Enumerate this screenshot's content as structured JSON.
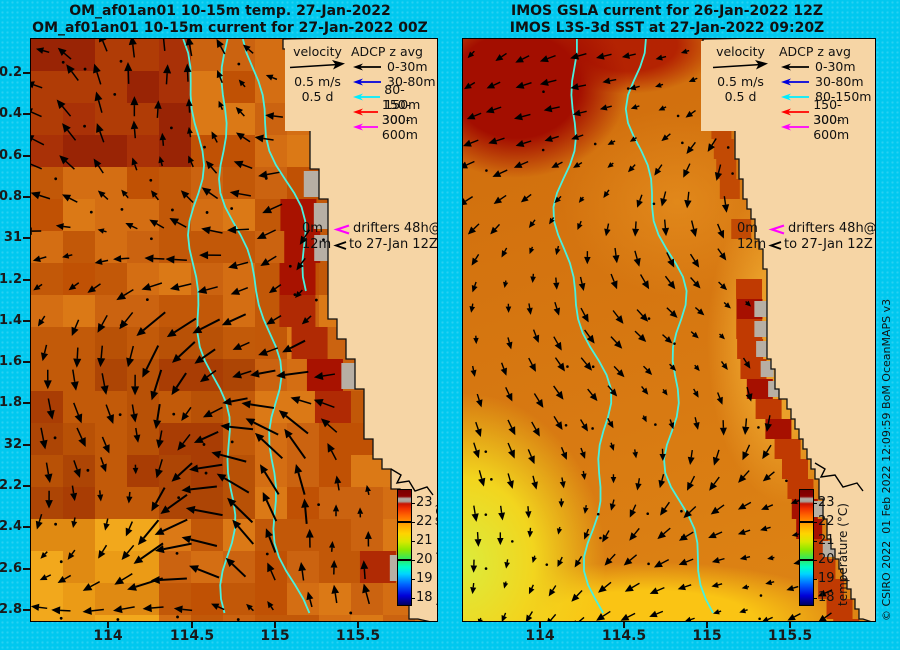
{
  "figure": {
    "background_color": "#00c8ef",
    "land_color": "#f6d5a5",
    "contour_color": "#49f0de",
    "coastal_warm_color": "#a81200",
    "gray_mask_color": "#b7afa4"
  },
  "left_panel": {
    "title_line1": "OM_af01an01 10-15m temp. 27-Jan-2022",
    "title_line2": "OM_af01an01 10-15m current for 27-Jan-2022 00Z",
    "content": "blocky model temperature field with current vector arrows, cyan contours, coastline at right"
  },
  "right_panel": {
    "title_line1": "IMOS GSLA current for 26-Jan-2022 12Z",
    "title_line2": "IMOS L3S-3d SST at 27-Jan-2022 09:20Z",
    "content": "smooth satellite SST field with GSLA current vector arrows, cyan contours, coastline at right"
  },
  "legend": {
    "velocity_label": "velocity",
    "velocity_speed": "0.5 m/s",
    "velocity_duration": "0.5 d",
    "adcp_title": "ADCP z avg",
    "entries": [
      {
        "label": "0-30m",
        "color": "#000000"
      },
      {
        "label": "30-80m",
        "color": "#0000dd"
      },
      {
        "label": "80-150m",
        "color": "#00eeff"
      },
      {
        "label": "150-300m",
        "color": "#ff0000"
      },
      {
        "label": "300-600m",
        "color": "#ff00ff"
      }
    ]
  },
  "drifters": {
    "line1_depth": "0m",
    "line1_text": "drifters 48h@12h",
    "line1_arrow_color": "#ff00ff",
    "line2_depth": "12m",
    "line2_text": "to 27-Jan 12Z",
    "line2_arrow_color": "#000000"
  },
  "colorbar": {
    "label": "temperature (°C)",
    "ticks": [
      "18",
      "19",
      "20",
      "21",
      "22",
      "23"
    ],
    "contour_marks": [
      "20",
      "22"
    ],
    "min_value": 17.7,
    "max_value": 23.75
  },
  "axes": {
    "y_tick_labels": [
      "0.2",
      "0.4",
      "0.6",
      "0.8",
      "31",
      "1.2",
      "1.4",
      "1.6",
      "1.8",
      "32",
      "2.2",
      "2.4",
      "2.6",
      "2.8"
    ],
    "x_tick_labels": [
      "114",
      "114.5",
      "115",
      "115.5"
    ]
  },
  "copyright": "© CSIRO 2022  01 Feb 2022 12:09:59 BoM OceanMAPS v3"
}
